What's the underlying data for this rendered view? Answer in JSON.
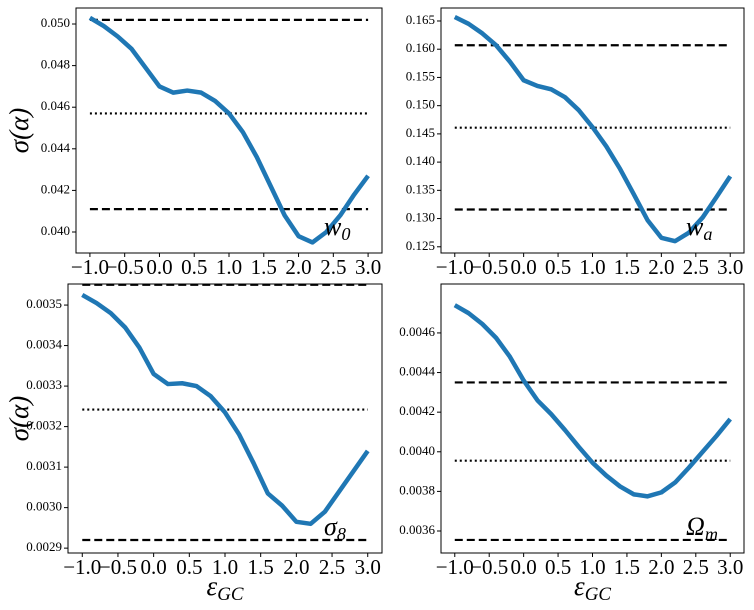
{
  "chart_data": [
    {
      "type": "line",
      "x": [
        -1.0,
        -0.8,
        -0.6,
        -0.4,
        -0.2,
        0.0,
        0.2,
        0.4,
        0.6,
        0.8,
        1.0,
        1.2,
        1.4,
        1.6,
        1.8,
        2.0,
        2.2,
        2.4,
        2.6,
        2.8,
        3.0
      ],
      "series": [
        {
          "color": "#1f77b4",
          "values": [
            0.0503,
            0.0499,
            0.0494,
            0.0488,
            0.0479,
            0.047,
            0.0467,
            0.0468,
            0.0467,
            0.0463,
            0.0457,
            0.0448,
            0.0436,
            0.0422,
            0.0408,
            0.0398,
            0.0395,
            0.04,
            0.0408,
            0.0418,
            0.0427
          ]
        }
      ],
      "hlines": [
        {
          "value": 0.0502,
          "style": "dashed"
        },
        {
          "value": 0.0457,
          "style": "dotted"
        },
        {
          "value": 0.0411,
          "style": "dashed"
        }
      ],
      "annotation": {
        "base": "w",
        "sub": "0"
      },
      "ylabel": "σ(α)",
      "xlim": [
        -1.2,
        3.2
      ],
      "ylim": [
        0.03899,
        0.05077
      ],
      "xticks": [
        {
          "value": -1.0,
          "label": "−1.0"
        },
        {
          "value": -0.5,
          "label": "−0.5"
        },
        {
          "value": 0.0,
          "label": "0.0"
        },
        {
          "value": 0.5,
          "label": "0.5"
        },
        {
          "value": 1.0,
          "label": "1.0"
        },
        {
          "value": 1.5,
          "label": "1.5"
        },
        {
          "value": 2.0,
          "label": "2.0"
        },
        {
          "value": 2.5,
          "label": "2.5"
        },
        {
          "value": 3.0,
          "label": "3.0"
        }
      ],
      "yticks": [
        {
          "value": 0.04,
          "label": "0.040"
        },
        {
          "value": 0.042,
          "label": "0.042"
        },
        {
          "value": 0.044,
          "label": "0.044"
        },
        {
          "value": 0.046,
          "label": "0.046"
        },
        {
          "value": 0.048,
          "label": "0.048"
        },
        {
          "value": 0.05,
          "label": "0.050"
        }
      ]
    },
    {
      "type": "line",
      "x": [
        -1.0,
        -0.8,
        -0.6,
        -0.4,
        -0.2,
        0.0,
        0.2,
        0.4,
        0.6,
        0.8,
        1.0,
        1.2,
        1.4,
        1.6,
        1.8,
        2.0,
        2.2,
        2.4,
        2.6,
        2.8,
        3.0
      ],
      "series": [
        {
          "color": "#1f77b4",
          "values": [
            0.1657,
            0.1645,
            0.1628,
            0.1607,
            0.1578,
            0.1545,
            0.1535,
            0.1529,
            0.1515,
            0.1492,
            0.1462,
            0.1428,
            0.1388,
            0.1343,
            0.1297,
            0.1266,
            0.126,
            0.1275,
            0.1302,
            0.1338,
            0.1375
          ]
        }
      ],
      "hlines": [
        {
          "value": 0.1607,
          "style": "dashed"
        },
        {
          "value": 0.1461,
          "style": "dotted"
        },
        {
          "value": 0.1316,
          "style": "dashed"
        }
      ],
      "annotation": {
        "base": "w",
        "sub": "a"
      },
      "xlim": [
        -1.2,
        3.2
      ],
      "ylim": [
        0.1239,
        0.1673
      ],
      "xticks": [
        {
          "value": -1.0,
          "label": "−1.0"
        },
        {
          "value": -0.5,
          "label": "−0.5"
        },
        {
          "value": 0.0,
          "label": "0.0"
        },
        {
          "value": 0.5,
          "label": "0.5"
        },
        {
          "value": 1.0,
          "label": "1.0"
        },
        {
          "value": 1.5,
          "label": "1.5"
        },
        {
          "value": 2.0,
          "label": "2.0"
        },
        {
          "value": 2.5,
          "label": "2.5"
        },
        {
          "value": 3.0,
          "label": "3.0"
        }
      ],
      "yticks": [
        {
          "value": 0.125,
          "label": "0.125"
        },
        {
          "value": 0.13,
          "label": "0.130"
        },
        {
          "value": 0.135,
          "label": "0.135"
        },
        {
          "value": 0.14,
          "label": "0.140"
        },
        {
          "value": 0.145,
          "label": "0.145"
        },
        {
          "value": 0.15,
          "label": "0.150"
        },
        {
          "value": 0.155,
          "label": "0.155"
        },
        {
          "value": 0.16,
          "label": "0.160"
        },
        {
          "value": 0.165,
          "label": "0.165"
        }
      ]
    },
    {
      "type": "line",
      "x": [
        -1.0,
        -0.8,
        -0.6,
        -0.4,
        -0.2,
        0.0,
        0.2,
        0.4,
        0.6,
        0.8,
        1.0,
        1.2,
        1.4,
        1.6,
        1.8,
        2.0,
        2.2,
        2.4,
        2.6,
        2.8,
        3.0
      ],
      "series": [
        {
          "color": "#1f77b4",
          "values": [
            0.003525,
            0.003505,
            0.00348,
            0.003445,
            0.003395,
            0.00333,
            0.003305,
            0.003307,
            0.0033,
            0.003275,
            0.003235,
            0.00318,
            0.00311,
            0.003035,
            0.003005,
            0.002965,
            0.00296,
            0.00299,
            0.00304,
            0.00309,
            0.00314
          ]
        }
      ],
      "hlines": [
        {
          "value": 0.00355,
          "style": "dashed"
        },
        {
          "value": 0.003242,
          "style": "dotted"
        },
        {
          "value": 0.00292,
          "style": "dashed"
        }
      ],
      "annotation": {
        "base": "σ",
        "sub": "8"
      },
      "ylabel": "σ(α)",
      "xlabel": {
        "base": "ε",
        "sub": "GC"
      },
      "xlim": [
        -1.2,
        3.2
      ],
      "ylim": [
        0.002888,
        0.003552
      ],
      "xticks": [
        {
          "value": -1.0,
          "label": "−1.0"
        },
        {
          "value": -0.5,
          "label": "−0.5"
        },
        {
          "value": 0.0,
          "label": "0.0"
        },
        {
          "value": 0.5,
          "label": "0.5"
        },
        {
          "value": 1.0,
          "label": "1.0"
        },
        {
          "value": 1.5,
          "label": "1.5"
        },
        {
          "value": 2.0,
          "label": "2.0"
        },
        {
          "value": 2.5,
          "label": "2.5"
        },
        {
          "value": 3.0,
          "label": "3.0"
        }
      ],
      "yticks": [
        {
          "value": 0.0029,
          "label": "0.0029"
        },
        {
          "value": 0.003,
          "label": "0.0030"
        },
        {
          "value": 0.0031,
          "label": "0.0031"
        },
        {
          "value": 0.0032,
          "label": "0.0032"
        },
        {
          "value": 0.0033,
          "label": "0.0033"
        },
        {
          "value": 0.0034,
          "label": "0.0034"
        },
        {
          "value": 0.0035,
          "label": "0.0035"
        }
      ]
    },
    {
      "type": "line",
      "x": [
        -1.0,
        -0.8,
        -0.6,
        -0.4,
        -0.2,
        0.0,
        0.2,
        0.4,
        0.6,
        0.8,
        1.0,
        1.2,
        1.4,
        1.6,
        1.8,
        2.0,
        2.2,
        2.4,
        2.6,
        2.8,
        3.0
      ],
      "series": [
        {
          "color": "#1f77b4",
          "values": [
            0.00474,
            0.0047,
            0.004645,
            0.004575,
            0.00448,
            0.00436,
            0.00426,
            0.00419,
            0.00411,
            0.004025,
            0.003945,
            0.00388,
            0.003825,
            0.003785,
            0.003775,
            0.003795,
            0.003845,
            0.00392,
            0.004,
            0.00408,
            0.004165
          ]
        }
      ],
      "hlines": [
        {
          "value": 0.00435,
          "style": "dashed"
        },
        {
          "value": 0.003955,
          "style": "dotted"
        },
        {
          "value": 0.003555,
          "style": "dashed"
        }
      ],
      "annotation": {
        "base": "Ω",
        "sub": "m"
      },
      "xlabel": {
        "base": "ε",
        "sub": "GC"
      },
      "xlim": [
        -1.2,
        3.2
      ],
      "ylim": [
        0.003489,
        0.004847
      ],
      "xticks": [
        {
          "value": -1.0,
          "label": "−1.0"
        },
        {
          "value": -0.5,
          "label": "−0.5"
        },
        {
          "value": 0.0,
          "label": "0.0"
        },
        {
          "value": 0.5,
          "label": "0.5"
        },
        {
          "value": 1.0,
          "label": "1.0"
        },
        {
          "value": 1.5,
          "label": "1.5"
        },
        {
          "value": 2.0,
          "label": "2.0"
        },
        {
          "value": 2.5,
          "label": "2.5"
        },
        {
          "value": 3.0,
          "label": "3.0"
        }
      ],
      "yticks": [
        {
          "value": 0.0036,
          "label": "0.0036"
        },
        {
          "value": 0.0038,
          "label": "0.0038"
        },
        {
          "value": 0.004,
          "label": "0.0040"
        },
        {
          "value": 0.0042,
          "label": "0.0042"
        },
        {
          "value": 0.0044,
          "label": "0.0044"
        },
        {
          "value": 0.0046,
          "label": "0.0046"
        }
      ]
    }
  ]
}
